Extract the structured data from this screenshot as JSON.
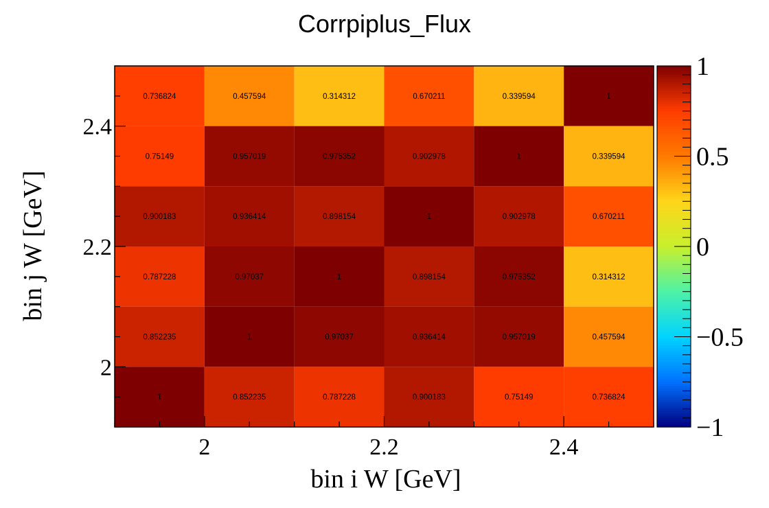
{
  "chart_data": {
    "type": "heatmap",
    "title": "Corrpiplus_Flux",
    "xlabel": "bin i W [GeV]",
    "ylabel": "bin j W [GeV]",
    "x_bin_edges": [
      1.9,
      2.0,
      2.1,
      2.2,
      2.3,
      2.4,
      2.5
    ],
    "y_bin_edges": [
      1.9,
      2.0,
      2.1,
      2.2,
      2.3,
      2.4,
      2.5
    ],
    "x_ticks": [
      {
        "value": 2.0,
        "label": "2"
      },
      {
        "value": 2.2,
        "label": "2.2"
      },
      {
        "value": 2.4,
        "label": "2.4"
      }
    ],
    "y_ticks": [
      {
        "value": 2.0,
        "label": "2"
      },
      {
        "value": 2.2,
        "label": "2.2"
      },
      {
        "value": 2.4,
        "label": "2.4"
      }
    ],
    "zlim": [
      -1,
      1
    ],
    "z_ticks": [
      {
        "value": 1,
        "label": "1"
      },
      {
        "value": 0.5,
        "label": "0.5"
      },
      {
        "value": 0,
        "label": "0"
      },
      {
        "value": -0.5,
        "label": "−0.5"
      },
      {
        "value": -1,
        "label": "−1"
      }
    ],
    "colormap": [
      "#00007f",
      "#0072ff",
      "#00d4ff",
      "#4ff2a6",
      "#c8f02c",
      "#ffd51a",
      "#ff7a00",
      "#ff3c00",
      "#7f0000"
    ],
    "rows_top_to_bottom": [
      [
        "0.736824",
        "0.457594",
        "0.314312",
        "0.670211",
        "0.339594",
        "1"
      ],
      [
        "0.75149",
        "0.957019",
        "0.975352",
        "0.902978",
        "1",
        "0.339594"
      ],
      [
        "0.900183",
        "0.936414",
        "0.898154",
        "1",
        "0.902978",
        "0.670211"
      ],
      [
        "0.787228",
        "0.97037",
        "1",
        "0.898154",
        "0.975352",
        "0.314312"
      ],
      [
        "0.852235",
        "1",
        "0.97037",
        "0.936414",
        "0.957019",
        "0.457594"
      ],
      [
        "1",
        "0.852235",
        "0.787228",
        "0.900183",
        "0.75149",
        "0.736824"
      ]
    ]
  }
}
